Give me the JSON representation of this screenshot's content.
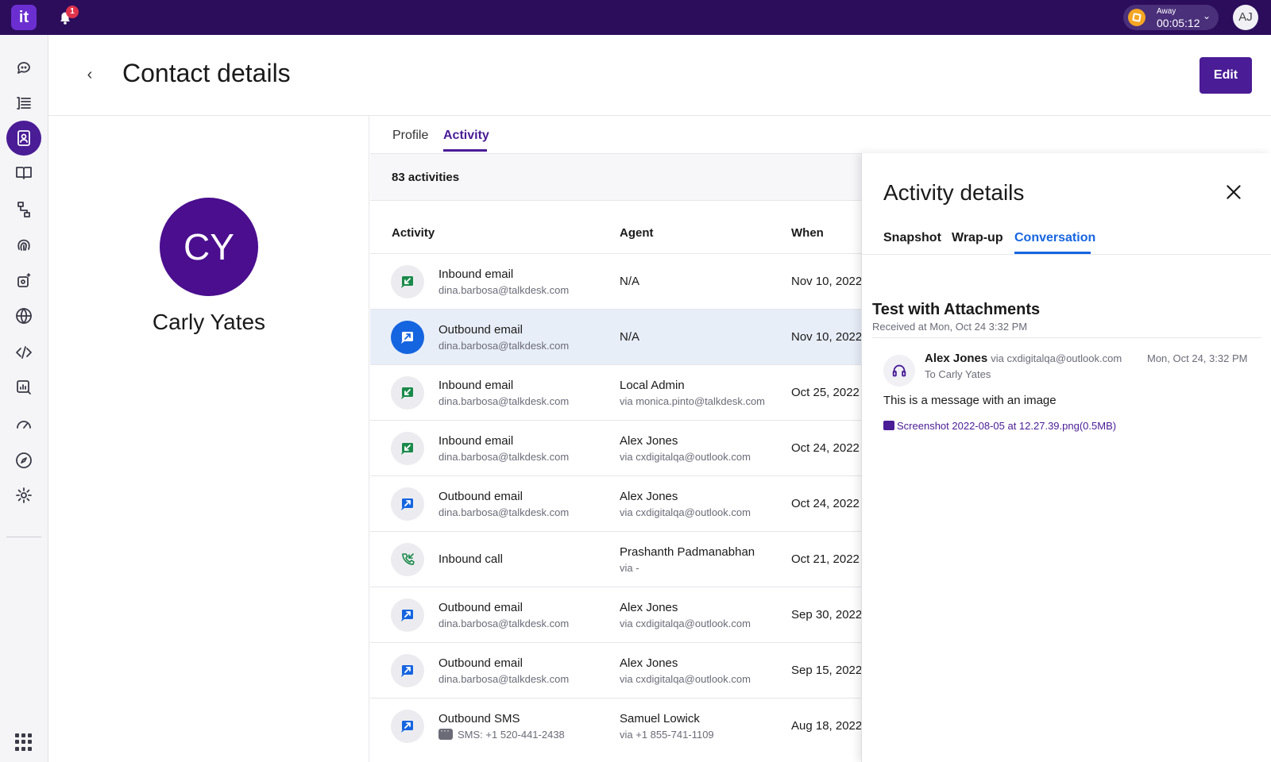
{
  "topbar": {
    "logo_text": "it",
    "notification_count": "1",
    "status_label": "Away",
    "status_timer": "00:05:12",
    "user_initials": "AJ"
  },
  "header": {
    "title": "Contact details",
    "back_icon": "chevron-left-icon",
    "edit_label": "Edit"
  },
  "contact": {
    "initials": "CY",
    "name": "Carly Yates"
  },
  "tabs": [
    {
      "label": "Profile"
    },
    {
      "label": "Activity",
      "active": true
    }
  ],
  "activity": {
    "count_label": "83 activities",
    "columns": {
      "activity": "Activity",
      "agent": "Agent",
      "when": "When"
    },
    "rows": [
      {
        "type": "inbound-email",
        "icon": "inbound-email-icon",
        "title": "Inbound email",
        "subtitle": "dina.barbosa@talkdesk.com",
        "agent": "N/A",
        "agent_sub": "",
        "when": "Nov 10, 2022"
      },
      {
        "type": "outbound-email",
        "icon": "outbound-email-icon",
        "title": "Outbound email",
        "subtitle": "dina.barbosa@talkdesk.com",
        "agent": "N/A",
        "agent_sub": "",
        "when": "Nov 10, 2022",
        "selected": true
      },
      {
        "type": "inbound-email",
        "icon": "inbound-email-icon",
        "title": "Inbound email",
        "subtitle": "dina.barbosa@talkdesk.com",
        "agent": "Local Admin",
        "agent_sub": "via monica.pinto@talkdesk.com",
        "when": "Oct 25, 2022"
      },
      {
        "type": "inbound-email",
        "icon": "inbound-email-icon",
        "title": "Inbound email",
        "subtitle": "dina.barbosa@talkdesk.com",
        "agent": "Alex Jones",
        "agent_sub": "via cxdigitalqa@outlook.com",
        "when": "Oct 24, 2022"
      },
      {
        "type": "outbound-email",
        "icon": "outbound-email-icon",
        "title": "Outbound email",
        "subtitle": "dina.barbosa@talkdesk.com",
        "agent": "Alex Jones",
        "agent_sub": "via cxdigitalqa@outlook.com",
        "when": "Oct 24, 2022"
      },
      {
        "type": "inbound-call",
        "icon": "inbound-call-icon",
        "title": "Inbound call",
        "subtitle": "",
        "agent": "Prashanth Padmanabhan",
        "agent_sub": "via -",
        "when": "Oct 21, 2022"
      },
      {
        "type": "outbound-email",
        "icon": "outbound-email-icon",
        "title": "Outbound email",
        "subtitle": "dina.barbosa@talkdesk.com",
        "agent": "Alex Jones",
        "agent_sub": "via cxdigitalqa@outlook.com",
        "when": "Sep 30, 2022"
      },
      {
        "type": "outbound-email",
        "icon": "outbound-email-icon",
        "title": "Outbound email",
        "subtitle": "dina.barbosa@talkdesk.com",
        "agent": "Alex Jones",
        "agent_sub": "via cxdigitalqa@outlook.com",
        "when": "Sep 15, 2022"
      },
      {
        "type": "outbound-sms",
        "icon": "outbound-sms-icon",
        "title": "Outbound SMS",
        "subtitle": "SMS: +1 520-441-2438",
        "agent": "Samuel Lowick",
        "agent_sub": "via +1 855-741-1109",
        "when": "Aug 18, 2022"
      }
    ]
  },
  "details": {
    "title": "Activity details",
    "close_icon": "close-icon",
    "tabs": [
      {
        "label": "Snapshot"
      },
      {
        "label": "Wrap-up"
      },
      {
        "label": "Conversation",
        "active": true
      }
    ],
    "subject": "Test with Attachments",
    "received": "Received at Mon, Oct 24 3:32 PM",
    "message": {
      "from": "Alex Jones",
      "via": "via cxdigitalqa@outlook.com",
      "time": "Mon, Oct 24, 3:32 PM",
      "to": "To Carly Yates",
      "body": "This is a message with an image",
      "attachment": "Screenshot 2022-08-05 at 12.27.39.png(0.5MB)"
    }
  },
  "nav": {
    "items": [
      {
        "icon": "conversations-icon"
      },
      {
        "icon": "queue-list-icon"
      },
      {
        "icon": "contacts-icon",
        "active": true
      },
      {
        "icon": "knowledge-book-icon"
      },
      {
        "icon": "flows-icon"
      },
      {
        "icon": "fingerprint-icon"
      },
      {
        "icon": "ai-gear-icon"
      },
      {
        "icon": "globe-icon"
      },
      {
        "icon": "code-icon"
      },
      {
        "icon": "analytics-icon"
      },
      {
        "icon": "dashboard-gauge-icon"
      },
      {
        "icon": "compass-icon"
      },
      {
        "icon": "settings-gear-icon"
      }
    ],
    "apps_icon": "apps-grid-icon"
  },
  "colors": {
    "topbar": "#2c0d5c",
    "brand": "#4a1c96",
    "accent_blue": "#1565e0",
    "inbound_green": "#1a8a4a",
    "selected_row": "#e8eef8",
    "status_away": "#f5a623"
  }
}
